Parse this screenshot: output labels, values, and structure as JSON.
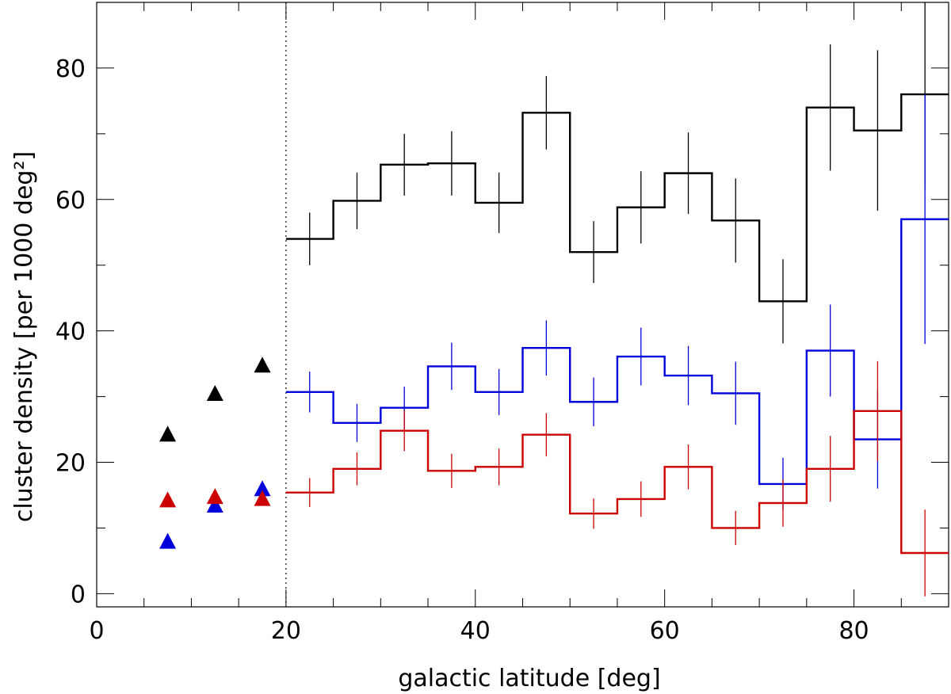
{
  "chart_data": {
    "type": "line",
    "xlabel": "galactic latitude [deg]",
    "ylabel": "cluster density [per 1000 deg²]",
    "xlim": [
      0,
      90
    ],
    "ylim": [
      -2,
      90
    ],
    "x_ticks": [
      0,
      20,
      40,
      60,
      80
    ],
    "y_ticks": [
      0,
      20,
      40,
      60,
      80
    ],
    "x_minor_step": 5,
    "y_minor_step": 10,
    "reference_line": {
      "x": 20,
      "style": "dotted"
    },
    "bin_edges": [
      20,
      25,
      30,
      35,
      40,
      45,
      50,
      55,
      60,
      65,
      70,
      75,
      80,
      85,
      90
    ],
    "series": [
      {
        "color": "#000000",
        "values": [
          54,
          59.8,
          65.3,
          65.5,
          59.5,
          73.2,
          52,
          58.8,
          64,
          56.8,
          44.5,
          74,
          70.5,
          76
        ],
        "errors": [
          4,
          4.3,
          4.7,
          4.9,
          4.6,
          5.6,
          4.7,
          5.5,
          6.2,
          6.4,
          6.4,
          9.6,
          12.2,
          14.5
        ],
        "low_lat_x": [
          7.5,
          12.5,
          17.5
        ],
        "low_lat_values": [
          24.3,
          30.5,
          34.8
        ]
      },
      {
        "color": "#0000dd",
        "values": [
          30.7,
          26,
          28.3,
          34.6,
          30.7,
          37.4,
          29.2,
          36.1,
          33.2,
          30.5,
          16.7,
          37,
          23.5,
          57
        ],
        "errors": [
          3.1,
          2.9,
          3.2,
          3.6,
          3.5,
          4.2,
          3.7,
          4.4,
          4.5,
          4.8,
          4,
          7,
          7.5,
          19
        ],
        "low_lat_x": [
          7.5,
          12.5,
          17.5
        ],
        "low_lat_values": [
          8,
          13.5,
          16
        ]
      },
      {
        "color": "#cc0000",
        "values": [
          15.4,
          19,
          24.8,
          18.7,
          19.3,
          24.2,
          12.2,
          14.4,
          19.3,
          10,
          13.8,
          19,
          27.8,
          6.2
        ],
        "errors": [
          2.2,
          2.5,
          3.1,
          2.6,
          2.8,
          3.3,
          2.3,
          2.7,
          3.4,
          2.6,
          3.6,
          5,
          7.6,
          6.6
        ],
        "low_lat_x": [
          7.5,
          12.5,
          17.5
        ],
        "low_lat_values": [
          14.3,
          14.8,
          14.5
        ]
      }
    ]
  }
}
